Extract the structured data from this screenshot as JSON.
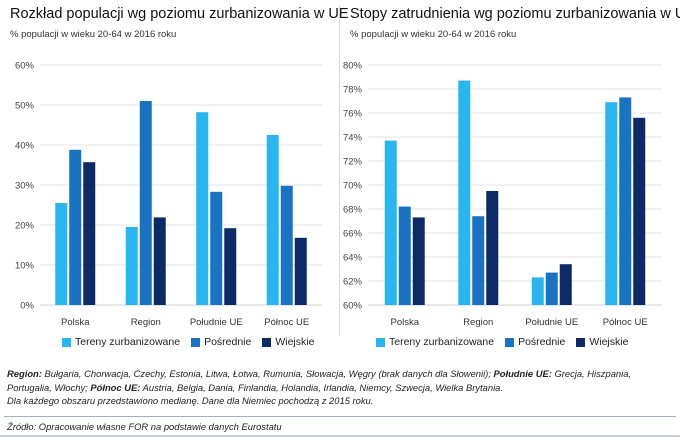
{
  "chart_data": [
    {
      "type": "bar",
      "title": "Rozkład populacji wg poziomu zurbanizowania w UE",
      "subtitle": "% populacji w wieku 20-64 w 2016 roku",
      "categories": [
        "Polska",
        "Region",
        "Południe UE",
        "Północ UE"
      ],
      "ylim": [
        0,
        60
      ],
      "yticks": [
        0,
        10,
        20,
        30,
        40,
        50,
        60
      ],
      "ytick_labels": [
        "0%",
        "10%",
        "20%",
        "30%",
        "40%",
        "50%",
        "60%"
      ],
      "series": [
        {
          "name": "Tereny zurbanizowane",
          "values": [
            25.5,
            19.5,
            48.2,
            42.5
          ]
        },
        {
          "name": "Pośrednie",
          "values": [
            38.8,
            51.0,
            28.3,
            29.8
          ]
        },
        {
          "name": "Wiejskie",
          "values": [
            35.7,
            21.9,
            19.2,
            16.8
          ]
        }
      ],
      "legend": "bottom"
    },
    {
      "type": "bar",
      "title": "Stopy zatrudnienia wg poziomu zurbanizowania w UE",
      "subtitle": "% populacji w wieku 20-64 w 2016 roku",
      "categories": [
        "Polska",
        "Region",
        "Południe UE",
        "Północ UE"
      ],
      "ylim": [
        60,
        80
      ],
      "yticks": [
        60,
        62,
        64,
        66,
        68,
        70,
        72,
        74,
        76,
        78,
        80
      ],
      "ytick_labels": [
        "60%",
        "62%",
        "64%",
        "66%",
        "68%",
        "70%",
        "72%",
        "74%",
        "76%",
        "78%",
        "80%"
      ],
      "series": [
        {
          "name": "Tereny zurbanizowane",
          "values": [
            73.7,
            78.7,
            62.3,
            76.9
          ]
        },
        {
          "name": "Pośrednie",
          "values": [
            68.2,
            67.4,
            62.7,
            77.3
          ]
        },
        {
          "name": "Wiejskie",
          "values": [
            67.3,
            69.5,
            63.4,
            75.6
          ]
        }
      ],
      "legend": "bottom"
    }
  ],
  "colors": {
    "series": [
      "#29b6f0",
      "#1a73c2",
      "#0d2a66"
    ],
    "grid": "#e4e4e4"
  },
  "notes": {
    "region_label": "Region:",
    "region_text": " Bułgaria, Chorwacja, Czechy, Estonia, Litwa, Łotwa, Rumunia, Słowacja, Węgry (brak danych dla Słowenii); ",
    "south_label": "Południe UE:",
    "south_text": " Grecja, Hiszpania, Portugalia, Włochy; ",
    "north_label": "Północ UE:",
    "north_text": " Austria, Belgia, Dania, Finlandia, Holandia, Irlandia, Niemcy, Szwecja, Wielka Brytania.",
    "median_text": "Dla każdego obszaru przedstawiono medianę. Dane dla Niemiec pochodzą z 2015 roku."
  },
  "source": "Źródło: Opracowanie własne FOR na podstawie danych Eurostatu"
}
